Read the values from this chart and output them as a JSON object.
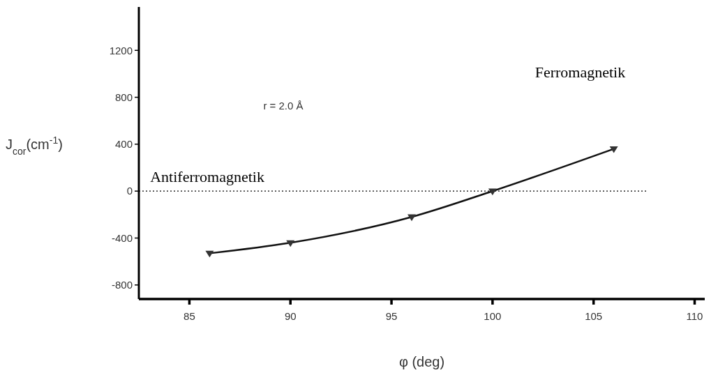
{
  "chart_data": {
    "type": "line",
    "xlabel": "φ (deg)",
    "ylabel": "J$_{cor}$(cm$^{-1}$)",
    "xlim": [
      82.5,
      110.5
    ],
    "xticks": [
      85,
      90,
      95,
      100,
      105,
      110
    ],
    "ylim": [
      -920,
      1570
    ],
    "yticks": [
      -800,
      -400,
      0,
      400,
      800,
      1200
    ],
    "series": [
      {
        "color": "#111111",
        "x": [
          86,
          90,
          96,
          100,
          106
        ],
        "values": [
          -530,
          -440,
          -220,
          0,
          360
        ]
      }
    ],
    "marker": "triangle",
    "line_style": "solid",
    "grid": false,
    "ref_lines": [
      {
        "axis": "y",
        "value": 0,
        "line_style": "dotted",
        "color": "#000000"
      }
    ],
    "annotations": [
      "r = 2.0 Å",
      "Ferromagnetik",
      "Antiferromagnetik"
    ]
  }
}
